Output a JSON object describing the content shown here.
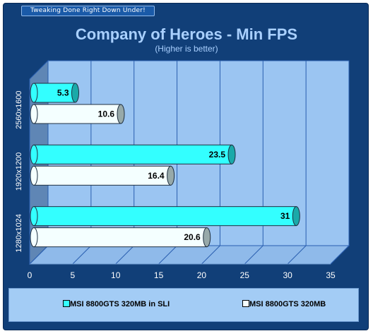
{
  "banner": {
    "tagline": "Tweaking Done Right Down Under!"
  },
  "chart_data": {
    "type": "bar",
    "orientation": "horizontal",
    "title": "Company of Heroes - Min FPS",
    "subtitle": "(Higher is better)",
    "categories": [
      "2560x1600",
      "1920x1200",
      "1280x1024"
    ],
    "series": [
      {
        "name": "MSI 8800GTS 320MB in SLI",
        "values": [
          5.3,
          23.5,
          31
        ],
        "color": "#33ffff"
      },
      {
        "name": "MSI 8800GTS 320MB",
        "values": [
          10.6,
          16.4,
          20.6
        ],
        "color": "#f4ffff"
      }
    ],
    "xlim": [
      0,
      35
    ],
    "x_ticks": [
      0,
      5,
      10,
      15,
      20,
      25,
      30,
      35
    ],
    "grid": true,
    "legend_position": "bottom"
  },
  "colors": {
    "background": "#113f78",
    "plot_wall": "#9bc5f2",
    "grid": "#2a5fb0",
    "title": "#a9d0ff"
  }
}
